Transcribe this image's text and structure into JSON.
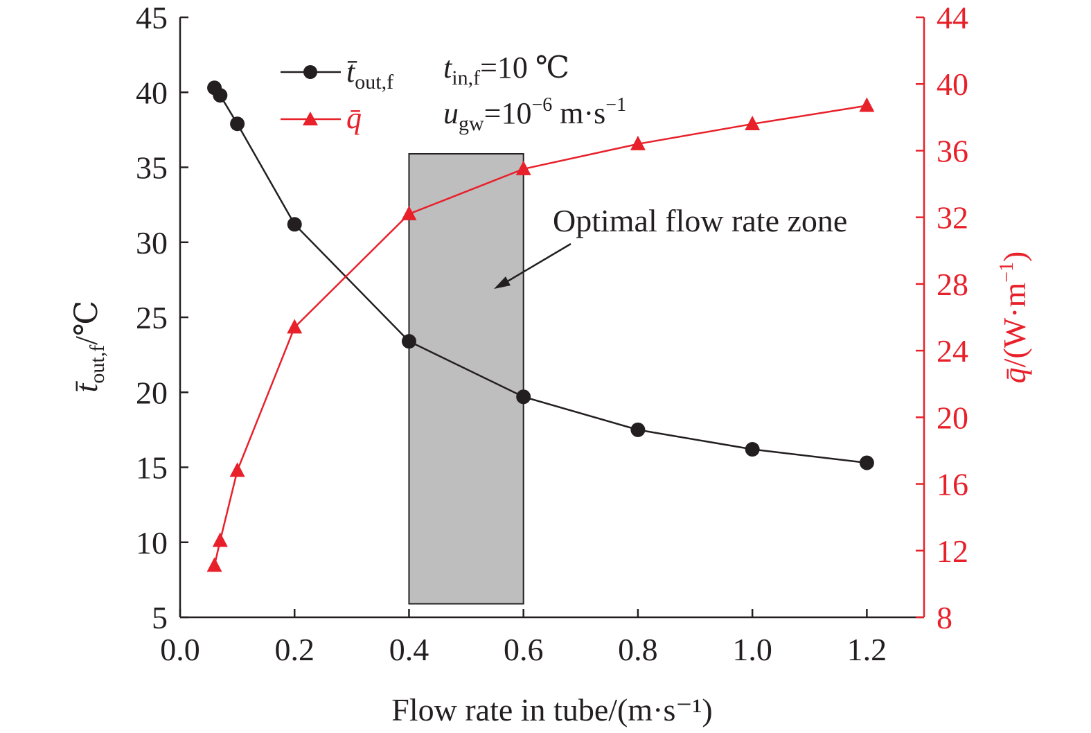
{
  "chart_data": {
    "type": "line",
    "xlabel": "Flow rate in tube/(m·s⁻¹)",
    "ylabel_left": {
      "symbol": "t̄",
      "subscript": "out,f",
      "unit": "/℃"
    },
    "ylabel_right": {
      "symbol": "q̄",
      "unit": "/(W·m",
      "sup": "−1",
      "close": ")"
    },
    "xlim": [
      0.0,
      1.3
    ],
    "ylim_left": [
      5,
      45
    ],
    "ylim_right": [
      8,
      44
    ],
    "x_ticks": [
      "0.0",
      "0.2",
      "0.4",
      "0.6",
      "0.8",
      "1.0",
      "1.2"
    ],
    "y_left_ticks": [
      "5",
      "10",
      "15",
      "20",
      "25",
      "30",
      "35",
      "40",
      "45"
    ],
    "y_right_ticks": [
      "8",
      "12",
      "16",
      "20",
      "24",
      "28",
      "32",
      "36",
      "40",
      "44"
    ],
    "series": [
      {
        "name": "t̄out,f",
        "axis": "left",
        "marker": "circle",
        "color": "#231f20",
        "x": [
          0.06,
          0.07,
          0.1,
          0.2,
          0.4,
          0.6,
          0.8,
          1.0,
          1.2
        ],
        "y": [
          40.3,
          39.8,
          37.9,
          31.2,
          23.4,
          19.7,
          17.5,
          16.2,
          15.3
        ]
      },
      {
        "name": "q̄",
        "axis": "right",
        "marker": "triangle",
        "color": "#e8202a",
        "x": [
          0.06,
          0.07,
          0.1,
          0.2,
          0.4,
          0.6,
          0.8,
          1.0,
          1.2
        ],
        "y": [
          11.1,
          12.6,
          16.8,
          25.4,
          32.2,
          34.9,
          36.4,
          37.6,
          38.7
        ]
      }
    ],
    "legend": {
      "placement": "top-left",
      "entries": [
        {
          "symbol": "t̄",
          "subscript": "out,f"
        },
        {
          "symbol": "q̄",
          "subscript": ""
        }
      ]
    },
    "conditions": {
      "line1": {
        "var": "t",
        "sub": "in,f",
        "rest": "=10 ℃"
      },
      "line2": {
        "var": "u",
        "sub": "gw",
        "base": "=10",
        "sup": "−6",
        "unit": " m·s",
        "unit_sup": "−1"
      }
    },
    "zone": {
      "label": "Optimal flow rate zone",
      "x_range": [
        0.4,
        0.6
      ],
      "y_range_left": [
        5.9,
        35.9
      ],
      "fill": "#bebebe"
    }
  }
}
